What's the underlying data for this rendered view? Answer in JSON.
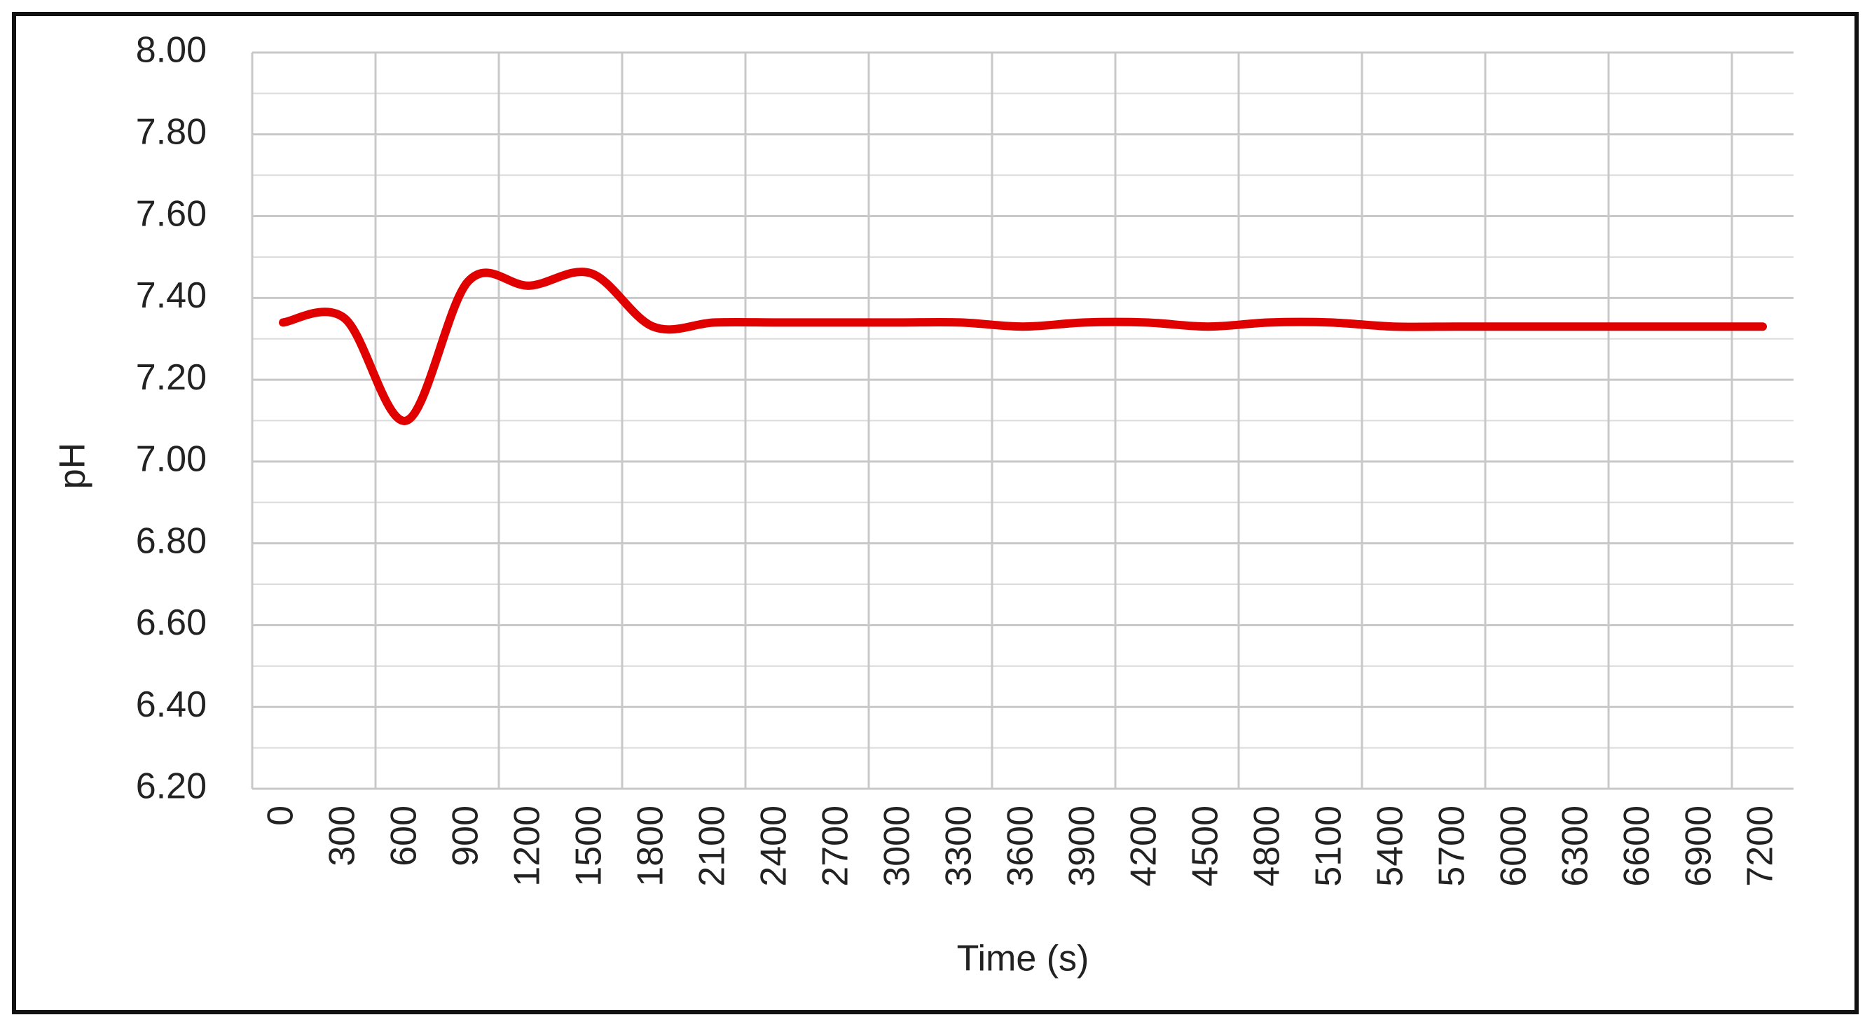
{
  "chart_data": {
    "type": "line",
    "x_label": "Time (s)",
    "y_label": "pH",
    "categories": [
      "0",
      "300",
      "600",
      "900",
      "1200",
      "1500",
      "1800",
      "2100",
      "2400",
      "2700",
      "3000",
      "3300",
      "3600",
      "3900",
      "4200",
      "4500",
      "4800",
      "5100",
      "5400",
      "5700",
      "6000",
      "6300",
      "6600",
      "6900",
      "7200"
    ],
    "series": [
      {
        "name": "pH",
        "color": "#e00000",
        "values": [
          7.34,
          7.35,
          7.1,
          7.44,
          7.43,
          7.46,
          7.33,
          7.34,
          7.34,
          7.34,
          7.34,
          7.34,
          7.33,
          7.34,
          7.34,
          7.33,
          7.34,
          7.34,
          7.33,
          7.33,
          7.33,
          7.33,
          7.33,
          7.33,
          7.33
        ]
      }
    ],
    "ylim": [
      6.2,
      8.0
    ],
    "yticks": [
      {
        "value": 6.2,
        "label": "6.20"
      },
      {
        "value": 6.4,
        "label": "6.40"
      },
      {
        "value": 6.6,
        "label": "6.60"
      },
      {
        "value": 6.8,
        "label": "6.80"
      },
      {
        "value": 7.0,
        "label": "7.00"
      },
      {
        "value": 7.2,
        "label": "7.20"
      },
      {
        "value": 7.4,
        "label": "7.40"
      },
      {
        "value": 7.6,
        "label": "7.60"
      },
      {
        "value": 7.8,
        "label": "7.80"
      },
      {
        "value": 8.0,
        "label": "8.00"
      }
    ],
    "grid": true,
    "smooth": true
  }
}
